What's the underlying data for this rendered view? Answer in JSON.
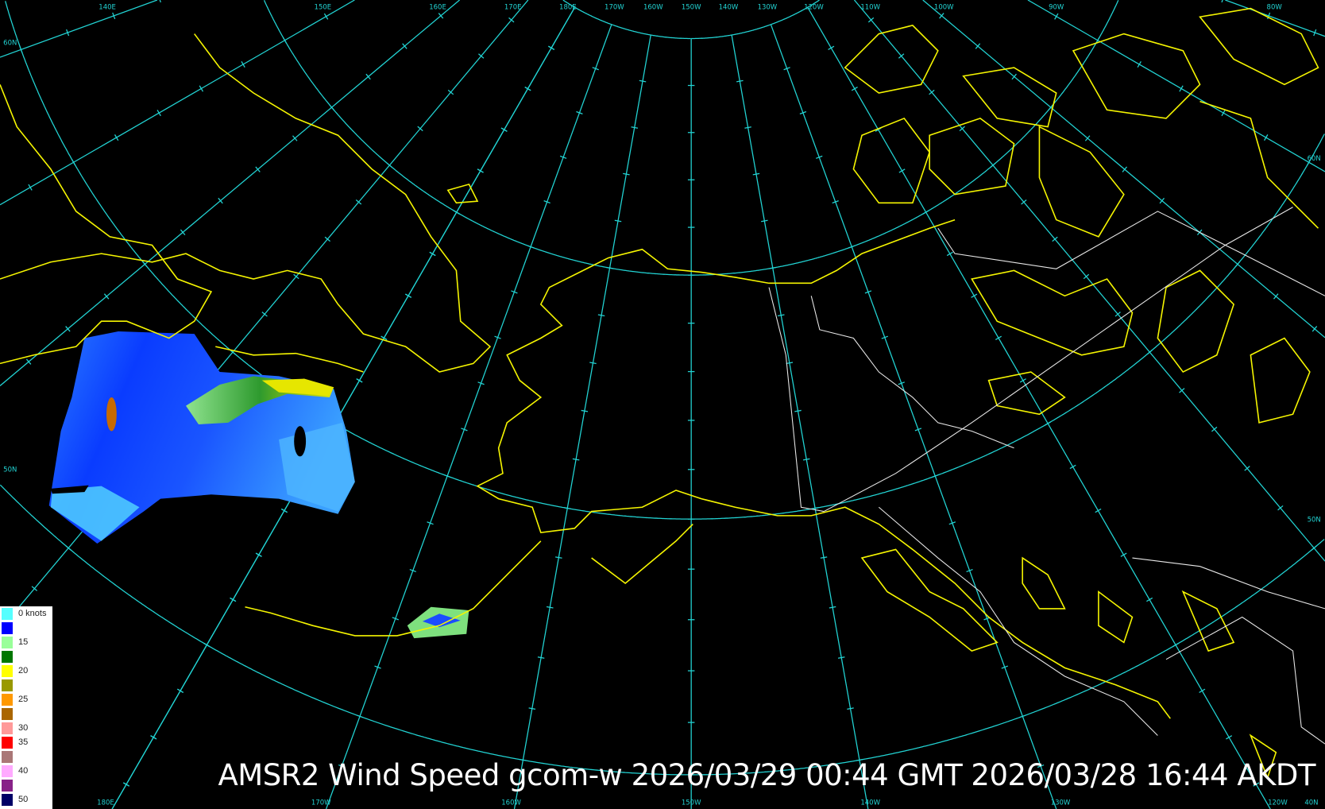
{
  "title": "AMSR2 Wind Speed gcom-w 2026/03/29 00:44 GMT 2026/03/28 16:44 AKDT",
  "colors": {
    "background": "#000000",
    "graticule": "#22d3d3",
    "coastline": "#f5f500",
    "borders": "#e8e8e8"
  },
  "grid_labels": {
    "top": [
      "140E",
      "150E",
      "160E",
      "170E",
      "180E",
      "170W",
      "160W",
      "150W",
      "140W",
      "130W",
      "120W",
      "110W",
      "100W",
      "90W",
      "80W"
    ],
    "left": [
      "60N",
      "50N"
    ],
    "right": [
      "60N",
      "50N"
    ],
    "bottom": [
      "180E",
      "170W",
      "160W",
      "150W",
      "140W",
      "130W",
      "120W",
      "40N"
    ]
  },
  "legend": {
    "items": [
      {
        "label": "0 knots",
        "color": "#55ffff"
      },
      {
        "label": "",
        "color": "#0000ff"
      },
      {
        "label": "15",
        "color": "#99ff99"
      },
      {
        "label": "",
        "color": "#007700"
      },
      {
        "label": "20",
        "color": "#ffff00"
      },
      {
        "label": "",
        "color": "#999900"
      },
      {
        "label": "25",
        "color": "#ff9900"
      },
      {
        "label": "",
        "color": "#aa6600"
      },
      {
        "label": "30",
        "color": "#ff9999"
      },
      {
        "label": "35",
        "color": "#ff0000"
      },
      {
        "label": "",
        "color": "#aa7777"
      },
      {
        "label": "40",
        "color": "#ffaaff"
      },
      {
        "label": "",
        "color": "#882288"
      },
      {
        "label": "50",
        "color": "#000066"
      }
    ]
  }
}
